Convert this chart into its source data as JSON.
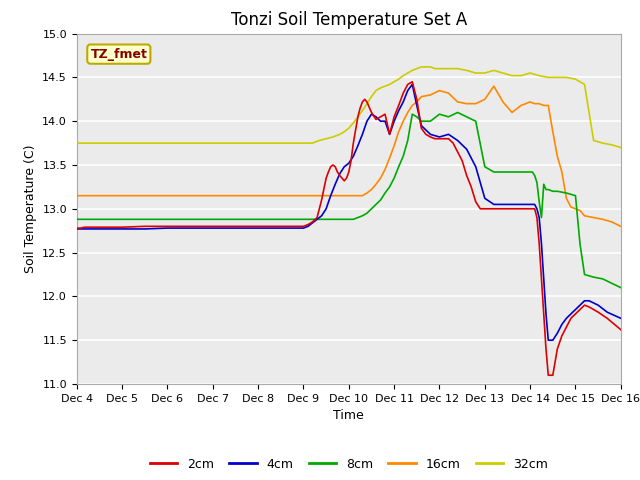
{
  "title": "Tonzi Soil Temperature Set A",
  "xlabel": "Time",
  "ylabel": "Soil Temperature (C)",
  "ylim": [
    11.0,
    15.0
  ],
  "xlim": [
    0,
    12
  ],
  "xtick_labels": [
    "Dec 4",
    "Dec 5",
    "Dec 6",
    "Dec 7",
    "Dec 8",
    "Dec 9",
    "Dec 10",
    "Dec 11",
    "Dec 12",
    "Dec 13",
    "Dec 14",
    "Dec 15",
    "Dec 16"
  ],
  "ytick_values": [
    11.0,
    11.5,
    12.0,
    12.5,
    13.0,
    13.5,
    14.0,
    14.5,
    15.0
  ],
  "annotation_text": "TZ_fmet",
  "annotation_bg": "#ffffcc",
  "annotation_border": "#bbaa00",
  "annotation_text_color": "#880000",
  "colors": {
    "2cm": "#dd0000",
    "4cm": "#0000cc",
    "8cm": "#00aa00",
    "16cm": "#ff8800",
    "32cm": "#cccc00"
  },
  "bg_color": "#ebebeb",
  "series": {
    "2cm": {
      "x": [
        0.0,
        0.08,
        0.17,
        0.25,
        0.33,
        0.42,
        0.5,
        0.58,
        0.67,
        0.75,
        0.83,
        0.92,
        1.0,
        1.5,
        2.0,
        2.5,
        3.0,
        3.5,
        4.0,
        4.5,
        5.0,
        5.1,
        5.2,
        5.3,
        5.35,
        5.4,
        5.5,
        5.55,
        5.6,
        5.65,
        5.7,
        5.75,
        5.8,
        5.85,
        5.9,
        5.95,
        6.0,
        6.05,
        6.1,
        6.15,
        6.2,
        6.25,
        6.3,
        6.35,
        6.4,
        6.5,
        6.6,
        6.7,
        6.8,
        6.9,
        7.0,
        7.1,
        7.2,
        7.3,
        7.4,
        7.5,
        7.6,
        7.7,
        7.8,
        7.9,
        8.0,
        8.1,
        8.2,
        8.3,
        8.4,
        8.5,
        8.6,
        8.7,
        8.8,
        8.9,
        9.0,
        9.1,
        9.2,
        9.3,
        9.4,
        9.5,
        9.6,
        9.7,
        9.8,
        9.9,
        10.0,
        10.05,
        10.1,
        10.15,
        10.2,
        10.25,
        10.3,
        10.35,
        10.4,
        10.45,
        10.5,
        10.6,
        10.7,
        10.8,
        10.9,
        11.0,
        11.1,
        11.2,
        11.3,
        11.5,
        11.7,
        12.0
      ],
      "y": [
        12.78,
        12.78,
        12.79,
        12.79,
        12.79,
        12.79,
        12.79,
        12.79,
        12.79,
        12.79,
        12.79,
        12.79,
        12.79,
        12.8,
        12.8,
        12.8,
        12.8,
        12.8,
        12.8,
        12.8,
        12.8,
        12.82,
        12.85,
        12.9,
        13.0,
        13.1,
        13.35,
        13.42,
        13.48,
        13.5,
        13.48,
        13.42,
        13.38,
        13.35,
        13.32,
        13.35,
        13.42,
        13.55,
        13.75,
        13.9,
        14.05,
        14.15,
        14.22,
        14.25,
        14.22,
        14.1,
        14.02,
        14.05,
        14.08,
        13.85,
        14.05,
        14.18,
        14.32,
        14.42,
        14.45,
        14.25,
        13.92,
        13.85,
        13.82,
        13.8,
        13.8,
        13.8,
        13.8,
        13.75,
        13.65,
        13.55,
        13.38,
        13.25,
        13.08,
        13.0,
        13.0,
        13.0,
        13.0,
        13.0,
        13.0,
        13.0,
        13.0,
        13.0,
        13.0,
        13.0,
        13.0,
        13.0,
        13.0,
        12.9,
        12.6,
        12.2,
        11.8,
        11.4,
        11.1,
        11.1,
        11.1,
        11.4,
        11.55,
        11.65,
        11.75,
        11.8,
        11.85,
        11.9,
        11.88,
        11.82,
        11.75,
        11.62
      ]
    },
    "4cm": {
      "x": [
        0.0,
        0.5,
        1.0,
        1.5,
        2.0,
        2.5,
        3.0,
        3.5,
        4.0,
        4.5,
        5.0,
        5.1,
        5.2,
        5.3,
        5.4,
        5.5,
        5.6,
        5.7,
        5.8,
        5.9,
        6.0,
        6.1,
        6.2,
        6.3,
        6.4,
        6.5,
        6.6,
        6.7,
        6.8,
        6.9,
        7.0,
        7.1,
        7.2,
        7.3,
        7.4,
        7.5,
        7.6,
        7.8,
        8.0,
        8.2,
        8.4,
        8.6,
        8.8,
        9.0,
        9.2,
        9.4,
        9.6,
        9.8,
        10.0,
        10.05,
        10.1,
        10.15,
        10.2,
        10.25,
        10.3,
        10.35,
        10.4,
        10.5,
        10.6,
        10.7,
        10.8,
        10.9,
        11.0,
        11.1,
        11.2,
        11.3,
        11.5,
        11.7,
        12.0
      ],
      "y": [
        12.77,
        12.77,
        12.77,
        12.77,
        12.78,
        12.78,
        12.78,
        12.78,
        12.78,
        12.78,
        12.78,
        12.8,
        12.84,
        12.88,
        12.92,
        13.0,
        13.15,
        13.28,
        13.4,
        13.48,
        13.52,
        13.6,
        13.72,
        13.85,
        14.0,
        14.08,
        14.05,
        14.0,
        14.0,
        13.85,
        14.0,
        14.12,
        14.22,
        14.35,
        14.42,
        14.18,
        13.95,
        13.85,
        13.82,
        13.85,
        13.78,
        13.68,
        13.48,
        13.12,
        13.05,
        13.05,
        13.05,
        13.05,
        13.05,
        13.05,
        13.05,
        13.0,
        12.9,
        12.6,
        12.2,
        11.8,
        11.5,
        11.5,
        11.58,
        11.68,
        11.75,
        11.8,
        11.85,
        11.9,
        11.95,
        11.95,
        11.9,
        11.82,
        11.75
      ]
    },
    "8cm": {
      "x": [
        0.0,
        0.5,
        1.0,
        1.5,
        2.0,
        2.5,
        3.0,
        3.5,
        4.0,
        4.5,
        5.0,
        5.1,
        5.2,
        5.3,
        5.4,
        5.5,
        5.6,
        5.7,
        5.8,
        5.9,
        6.0,
        6.1,
        6.2,
        6.3,
        6.4,
        6.5,
        6.6,
        6.7,
        6.8,
        6.9,
        7.0,
        7.1,
        7.2,
        7.3,
        7.4,
        7.5,
        7.6,
        7.8,
        8.0,
        8.2,
        8.4,
        8.6,
        8.8,
        9.0,
        9.2,
        9.4,
        9.6,
        9.8,
        10.0,
        10.05,
        10.1,
        10.15,
        10.2,
        10.25,
        10.3,
        10.35,
        10.4,
        10.5,
        10.6,
        10.8,
        11.0,
        11.1,
        11.2,
        11.4,
        11.6,
        12.0
      ],
      "y": [
        12.88,
        12.88,
        12.88,
        12.88,
        12.88,
        12.88,
        12.88,
        12.88,
        12.88,
        12.88,
        12.88,
        12.88,
        12.88,
        12.88,
        12.88,
        12.88,
        12.88,
        12.88,
        12.88,
        12.88,
        12.88,
        12.88,
        12.9,
        12.92,
        12.95,
        13.0,
        13.05,
        13.1,
        13.18,
        13.25,
        13.35,
        13.48,
        13.6,
        13.78,
        14.08,
        14.05,
        14.0,
        14.0,
        14.08,
        14.05,
        14.1,
        14.05,
        14.0,
        13.48,
        13.42,
        13.42,
        13.42,
        13.42,
        13.42,
        13.42,
        13.38,
        13.3,
        13.08,
        12.9,
        13.28,
        13.22,
        13.22,
        13.2,
        13.2,
        13.18,
        13.15,
        12.6,
        12.25,
        12.22,
        12.2,
        12.1
      ]
    },
    "16cm": {
      "x": [
        0.0,
        0.5,
        1.0,
        1.5,
        2.0,
        2.5,
        3.0,
        3.5,
        4.0,
        4.5,
        5.0,
        5.2,
        5.4,
        5.6,
        5.8,
        6.0,
        6.1,
        6.2,
        6.3,
        6.4,
        6.5,
        6.6,
        6.7,
        6.8,
        6.9,
        7.0,
        7.1,
        7.2,
        7.3,
        7.4,
        7.5,
        7.6,
        7.8,
        8.0,
        8.2,
        8.4,
        8.6,
        8.8,
        9.0,
        9.2,
        9.4,
        9.6,
        9.8,
        10.0,
        10.1,
        10.2,
        10.3,
        10.4,
        10.5,
        10.6,
        10.7,
        10.8,
        10.9,
        11.0,
        11.1,
        11.2,
        11.4,
        11.6,
        11.8,
        12.0
      ],
      "y": [
        13.15,
        13.15,
        13.15,
        13.15,
        13.15,
        13.15,
        13.15,
        13.15,
        13.15,
        13.15,
        13.15,
        13.15,
        13.15,
        13.15,
        13.15,
        13.15,
        13.15,
        13.15,
        13.15,
        13.18,
        13.22,
        13.28,
        13.35,
        13.45,
        13.58,
        13.72,
        13.88,
        14.0,
        14.1,
        14.18,
        14.22,
        14.28,
        14.3,
        14.35,
        14.32,
        14.22,
        14.2,
        14.2,
        14.25,
        14.4,
        14.22,
        14.1,
        14.18,
        14.22,
        14.2,
        14.2,
        14.18,
        14.18,
        13.88,
        13.6,
        13.42,
        13.12,
        13.02,
        13.0,
        12.98,
        12.92,
        12.9,
        12.88,
        12.85,
        12.8
      ]
    },
    "32cm": {
      "x": [
        0.0,
        0.5,
        1.0,
        1.5,
        2.0,
        2.5,
        3.0,
        3.5,
        4.0,
        4.5,
        5.0,
        5.2,
        5.35,
        5.5,
        5.65,
        5.8,
        5.9,
        6.0,
        6.1,
        6.2,
        6.3,
        6.4,
        6.5,
        6.6,
        6.7,
        6.8,
        6.9,
        7.0,
        7.1,
        7.2,
        7.3,
        7.4,
        7.5,
        7.6,
        7.7,
        7.8,
        7.9,
        8.0,
        8.2,
        8.4,
        8.6,
        8.8,
        9.0,
        9.2,
        9.4,
        9.6,
        9.8,
        10.0,
        10.2,
        10.4,
        10.6,
        10.8,
        11.0,
        11.1,
        11.2,
        11.4,
        11.6,
        11.8,
        12.0
      ],
      "y": [
        13.75,
        13.75,
        13.75,
        13.75,
        13.75,
        13.75,
        13.75,
        13.75,
        13.75,
        13.75,
        13.75,
        13.75,
        13.78,
        13.8,
        13.82,
        13.85,
        13.88,
        13.92,
        13.98,
        14.05,
        14.12,
        14.2,
        14.28,
        14.35,
        14.38,
        14.4,
        14.42,
        14.45,
        14.48,
        14.52,
        14.55,
        14.58,
        14.6,
        14.62,
        14.62,
        14.62,
        14.6,
        14.6,
        14.6,
        14.6,
        14.58,
        14.55,
        14.55,
        14.58,
        14.55,
        14.52,
        14.52,
        14.55,
        14.52,
        14.5,
        14.5,
        14.5,
        14.48,
        14.45,
        14.42,
        13.78,
        13.75,
        13.73,
        13.7
      ]
    }
  }
}
